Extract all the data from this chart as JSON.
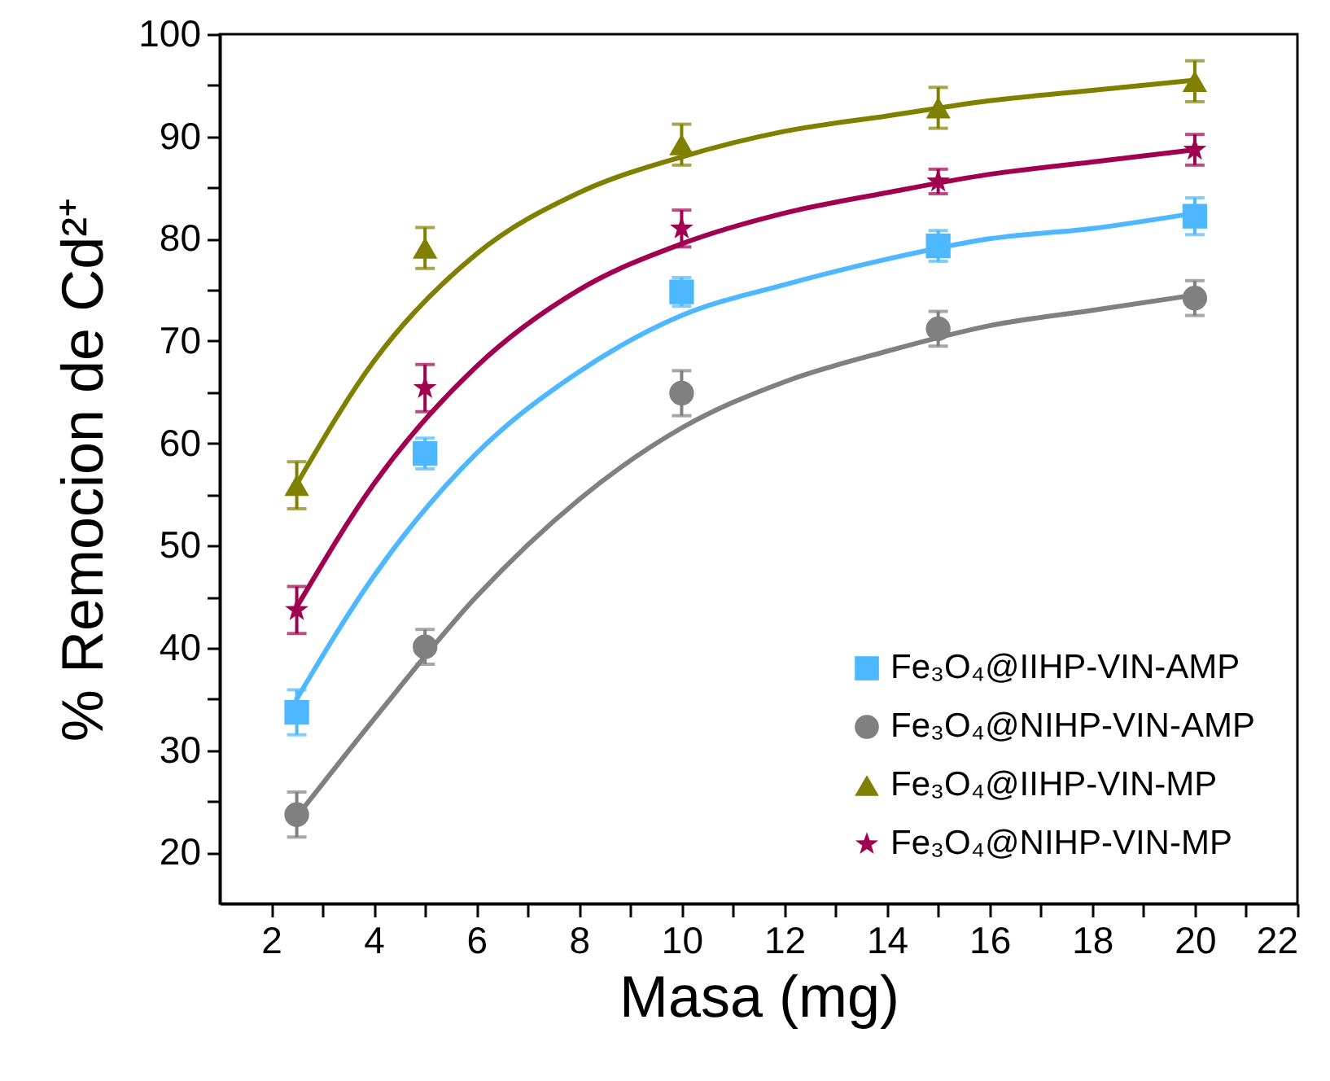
{
  "chart_data": {
    "type": "scatter",
    "xlabel": "Masa (mg)",
    "ylabel": "% Remocion de Cd²⁺",
    "xlim": [
      1,
      22
    ],
    "ylim": [
      15,
      100
    ],
    "xticks": [
      2,
      {
        "value": 3,
        "label": null
      },
      4,
      {
        "value": 5,
        "label": null
      },
      6,
      {
        "value": 7,
        "label": null
      },
      8,
      {
        "value": 9,
        "label": null
      },
      10,
      {
        "value": 11,
        "label": null
      },
      12,
      {
        "value": 13,
        "label": null
      },
      14,
      {
        "value": 15,
        "label": null
      },
      16,
      {
        "value": 17,
        "label": null
      },
      18,
      {
        "value": 19,
        "label": null
      },
      20,
      {
        "value": 21,
        "label": null
      },
      22
    ],
    "yticks": [
      20,
      {
        "value": 25,
        "label": null
      },
      30,
      {
        "value": 35,
        "label": null
      },
      40,
      {
        "value": 45,
        "label": null
      },
      50,
      {
        "value": 55,
        "label": null
      },
      60,
      {
        "value": 65,
        "label": null
      },
      70,
      {
        "value": 75,
        "label": null
      },
      80,
      {
        "value": 85,
        "label": null
      },
      90,
      {
        "value": 95,
        "label": null
      },
      100
    ],
    "grid": false,
    "legend": "bottom right",
    "series": [
      {
        "name": "Fe₃O₄@IIHP-VIN-AMP",
        "color": "#4db8ff",
        "marker": "square",
        "x": [
          2.5,
          5,
          10,
          15,
          20
        ],
        "values": [
          33.7,
          59,
          74.8,
          79.3,
          82.2
        ],
        "errors": [
          2.2,
          1.5,
          1.4,
          1.5,
          1.8
        ]
      },
      {
        "name": "Fe₃O₄@NIHP-VIN-AMP",
        "color": "#808080",
        "marker": "circle",
        "x": [
          2.5,
          5,
          10,
          15,
          20
        ],
        "values": [
          23.7,
          40.1,
          64.9,
          71.2,
          74.2
        ],
        "errors": [
          2.2,
          1.7,
          2.2,
          1.7,
          1.7
        ]
      },
      {
        "name": "Fe₃O₄@IIHP-VIN-MP",
        "color": "#808000",
        "marker": "triangle",
        "x": [
          2.5,
          5,
          10,
          15,
          20
        ],
        "values": [
          55.9,
          79.1,
          89.2,
          92.8,
          95.4
        ],
        "errors": [
          2.3,
          2,
          2,
          2,
          2
        ]
      },
      {
        "name": "Fe₃O₄@NIHP-VIN-MP",
        "color": "#a0004f",
        "marker": "star",
        "x": [
          2.5,
          5,
          10,
          15,
          20
        ],
        "values": [
          43.7,
          65.4,
          81,
          85.6,
          88.7
        ],
        "errors": [
          2.3,
          2.3,
          1.8,
          1.2,
          1.5
        ]
      },
      {
        "type": "line",
        "color": "#4db8ff",
        "x": [
          2.5,
          4,
          6,
          8,
          10,
          12,
          14,
          16,
          18,
          20
        ],
        "values": [
          35,
          47,
          59,
          67,
          72.5,
          75.5,
          78,
          80,
          81,
          82.5
        ]
      },
      {
        "type": "line",
        "color": "#808080",
        "x": [
          2.5,
          4,
          6,
          8,
          10,
          12,
          14,
          16,
          18,
          20
        ],
        "values": [
          23.5,
          33,
          45,
          54.5,
          61.5,
          66,
          69,
          71.5,
          73,
          74.5
        ]
      },
      {
        "type": "line",
        "color": "#808000",
        "x": [
          2.5,
          4,
          6,
          8,
          10,
          12,
          14,
          16,
          18,
          20
        ],
        "values": [
          56,
          68,
          78.5,
          84.5,
          88,
          90.5,
          92,
          93.5,
          94.5,
          95.5
        ]
      },
      {
        "type": "line",
        "color": "#a0004f",
        "x": [
          2.5,
          4,
          6,
          8,
          10,
          12,
          14,
          16,
          18,
          20
        ],
        "values": [
          44,
          56,
          67.5,
          75,
          79.5,
          82.5,
          84.5,
          86.3,
          87.5,
          88.7
        ]
      }
    ]
  }
}
